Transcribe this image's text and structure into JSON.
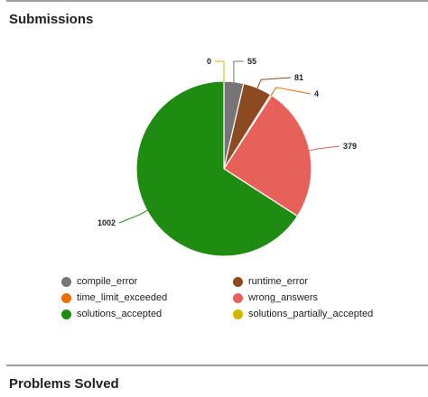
{
  "sections": {
    "submissions_title": "Submissions",
    "problems_solved_title": "Problems Solved"
  },
  "chart_data": {
    "type": "pie",
    "title": "Submissions",
    "categories": [
      "compile_error",
      "runtime_error",
      "time_limit_exceeded",
      "wrong_answers",
      "solutions_accepted",
      "solutions_partially_accepted"
    ],
    "values": [
      55,
      81,
      4,
      379,
      1002,
      0
    ],
    "slice_order": [
      "solutions_partially_accepted",
      "compile_error",
      "runtime_error",
      "time_limit_exceeded",
      "wrong_answers",
      "solutions_accepted"
    ],
    "colors": {
      "compile_error": "#757575",
      "runtime_error": "#8b4a1f",
      "time_limit_exceeded": "#ef6c00",
      "wrong_answers": "#e8605a",
      "solutions_accepted": "#1e8c12",
      "solutions_partially_accepted": "#d4b400"
    },
    "legend": {
      "position": "bottom",
      "items": [
        {
          "label": "compile_error",
          "color": "#757575"
        },
        {
          "label": "runtime_error",
          "color": "#8b4a1f"
        },
        {
          "label": "time_limit_exceeded",
          "color": "#ef6c00"
        },
        {
          "label": "wrong_answers",
          "color": "#e8605a"
        },
        {
          "label": "solutions_accepted",
          "color": "#1e8c12"
        },
        {
          "label": "solutions_partially_accepted",
          "color": "#d4b400"
        }
      ]
    }
  }
}
